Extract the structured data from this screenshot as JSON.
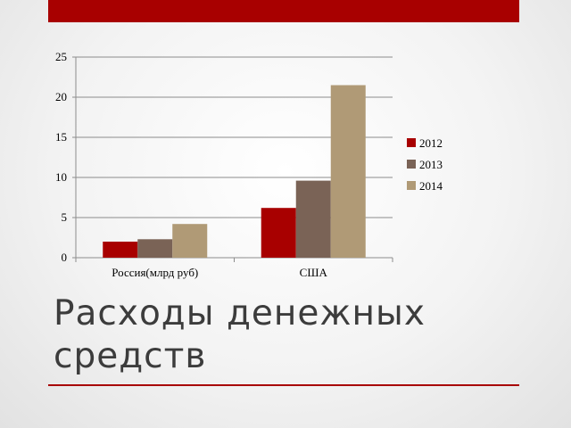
{
  "slide": {
    "title": "Расходы денежных средств",
    "accent_color": "#a80000"
  },
  "chart_data": {
    "type": "bar",
    "categories": [
      "Россия(млрд руб)",
      "США"
    ],
    "series": [
      {
        "name": "2012",
        "values": [
          2.0,
          6.2
        ],
        "color": "#a80000"
      },
      {
        "name": "2013",
        "values": [
          2.3,
          9.6
        ],
        "color": "#7a6356"
      },
      {
        "name": "2014",
        "values": [
          4.2,
          21.5
        ],
        "color": "#b09a76"
      }
    ],
    "ylim": [
      0,
      25
    ],
    "yticks": [
      0,
      5,
      10,
      15,
      20,
      25
    ],
    "grid": true,
    "legend": "right"
  }
}
